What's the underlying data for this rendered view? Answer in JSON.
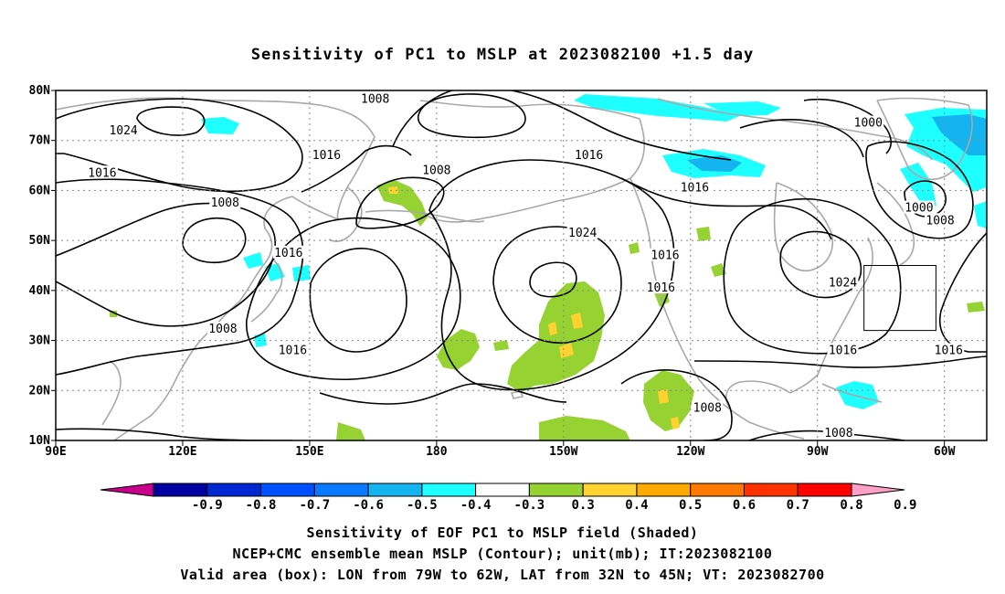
{
  "title": "Sensitivity of PC1 to MSLP at 2023082100 +1.5 day",
  "captions": {
    "line1": "Sensitivity of EOF PC1 to MSLP field (Shaded)",
    "line2": "NCEP+CMC ensemble mean MSLP (Contour); unit(mb); IT:2023082100",
    "line3": "Valid area (box): LON from 79W to 62W, LAT from 32N to 45N; VT: 2023082700"
  },
  "axes": {
    "lon_range": [
      90,
      310
    ],
    "lat_range": [
      10,
      80
    ],
    "x_ticks": [
      {
        "lon": 90,
        "label": "90E"
      },
      {
        "lon": 120,
        "label": "120E"
      },
      {
        "lon": 150,
        "label": "150E"
      },
      {
        "lon": 180,
        "label": "180"
      },
      {
        "lon": 210,
        "label": "150W"
      },
      {
        "lon": 240,
        "label": "120W"
      },
      {
        "lon": 270,
        "label": "90W"
      },
      {
        "lon": 300,
        "label": "60W"
      }
    ],
    "y_ticks": [
      {
        "lat": 10,
        "label": "10N"
      },
      {
        "lat": 20,
        "label": "20N"
      },
      {
        "lat": 30,
        "label": "30N"
      },
      {
        "lat": 40,
        "label": "40N"
      },
      {
        "lat": 50,
        "label": "50N"
      },
      {
        "lat": 60,
        "label": "60N"
      },
      {
        "lat": 70,
        "label": "70N"
      },
      {
        "lat": 80,
        "label": "80N"
      }
    ],
    "grid": true
  },
  "valid_box": {
    "lon_min": 281,
    "lon_max": 298,
    "lat_min": 32,
    "lat_max": 45
  },
  "colorbar": {
    "labels": [
      "-0.9",
      "-0.8",
      "-0.7",
      "-0.6",
      "-0.5",
      "-0.4",
      "-0.3",
      "0.3",
      "0.4",
      "0.5",
      "0.6",
      "0.7",
      "0.8",
      "0.9"
    ],
    "low_extend_color": "#c8008c",
    "high_extend_color": "#ffa0c8",
    "colors": [
      "#0000a0",
      "#0028d2",
      "#0050ff",
      "#0a78ff",
      "#14b4f0",
      "#1effff",
      "#ffffff",
      "#96d232",
      "#ffd232",
      "#ffaa00",
      "#ff7800",
      "#ff3200",
      "#ff0000"
    ]
  },
  "contour_labels": [
    {
      "text": "1008",
      "lon": 165.5,
      "lat": 78.3
    },
    {
      "text": "1024",
      "lon": 106,
      "lat": 72
    },
    {
      "text": "1016",
      "lon": 154,
      "lat": 67
    },
    {
      "text": "1016",
      "lon": 101,
      "lat": 63.5
    },
    {
      "text": "1008",
      "lon": 180,
      "lat": 64
    },
    {
      "text": "1016",
      "lon": 216,
      "lat": 67
    },
    {
      "text": "1000",
      "lon": 282,
      "lat": 73.5
    },
    {
      "text": "1008",
      "lon": 130,
      "lat": 57.5
    },
    {
      "text": "1016",
      "lon": 241,
      "lat": 60.5
    },
    {
      "text": "1024",
      "lon": 214.5,
      "lat": 51.5
    },
    {
      "text": "1016",
      "lon": 234,
      "lat": 47
    },
    {
      "text": "1000",
      "lon": 294,
      "lat": 56.5
    },
    {
      "text": "1008",
      "lon": 299,
      "lat": 54
    },
    {
      "text": "1016",
      "lon": 145,
      "lat": 47.5
    },
    {
      "text": "1024",
      "lon": 276,
      "lat": 41.5
    },
    {
      "text": "1016",
      "lon": 233,
      "lat": 40.5
    },
    {
      "text": "1008",
      "lon": 129.5,
      "lat": 32.3
    },
    {
      "text": "1016",
      "lon": 146,
      "lat": 28
    },
    {
      "text": "1016",
      "lon": 276,
      "lat": 28
    },
    {
      "text": "1016",
      "lon": 301,
      "lat": 28
    },
    {
      "text": "1008",
      "lon": 244,
      "lat": 16.5
    },
    {
      "text": "1008",
      "lon": 275,
      "lat": 11.5
    }
  ]
}
